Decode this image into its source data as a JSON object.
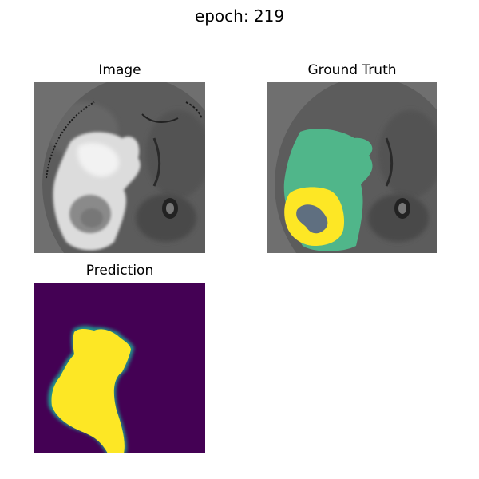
{
  "figure": {
    "suptitle": "epoch: 219",
    "panels": [
      {
        "title": "Image",
        "kind": "grayscale-mri"
      },
      {
        "title": "Ground Truth",
        "kind": "mri-with-segmentation-overlay"
      },
      {
        "title": "Prediction",
        "kind": "viridis-probability-map"
      }
    ]
  },
  "colors": {
    "background_gray": "#6f6f6f",
    "mask_green": "#4fc08f",
    "mask_yellow": "#fde725",
    "viridis_low": "#440154",
    "viridis_high": "#fde725"
  }
}
